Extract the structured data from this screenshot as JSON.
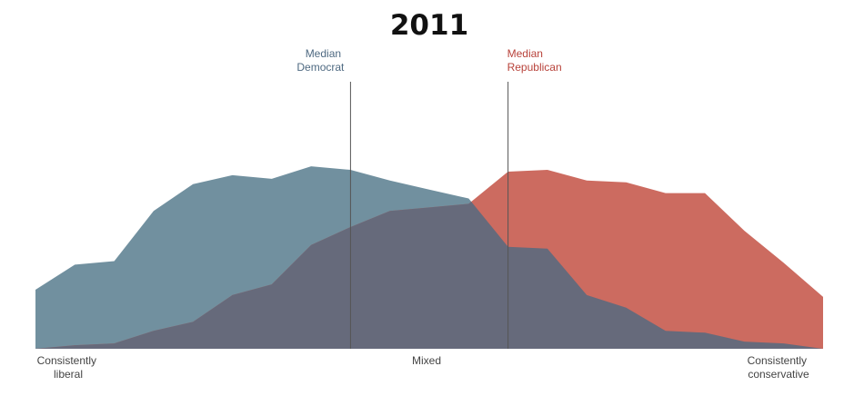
{
  "chart_data": {
    "type": "area",
    "title": "2011",
    "x": [
      0,
      1,
      2,
      3,
      4,
      5,
      6,
      7,
      8,
      9,
      10,
      11,
      12,
      13,
      14,
      15,
      16,
      17,
      18,
      19,
      20
    ],
    "ylim": [
      0,
      100
    ],
    "series": [
      {
        "name": "",
        "color": "#71909f",
        "values": [
          33,
          47,
          49,
          77,
          92,
          97,
          95,
          102,
          100,
          94,
          89,
          84,
          57,
          56,
          30,
          23,
          10,
          9,
          4,
          3,
          0
        ]
      },
      {
        "name": "",
        "color": "#cc6b60",
        "values": [
          0,
          2,
          3,
          10,
          15,
          30,
          36,
          58,
          68,
          77,
          79,
          81,
          99,
          100,
          94,
          93,
          87,
          87,
          66,
          48,
          29
        ]
      }
    ],
    "overlap_color": "#666a7b",
    "median_democrat": {
      "x": 8,
      "line1": "Median",
      "line2": "Democrat",
      "color": "#4f6a82"
    },
    "median_republican": {
      "x": 12,
      "line1": "Median",
      "line2": "Republican",
      "color": "#b8423a"
    },
    "axis_labels": {
      "left_line1": "Consistently",
      "left_line2": "liberal",
      "center": "Mixed",
      "right_line1": "Consistently",
      "right_line2": "conservative"
    },
    "grid": false,
    "legend": "none"
  }
}
